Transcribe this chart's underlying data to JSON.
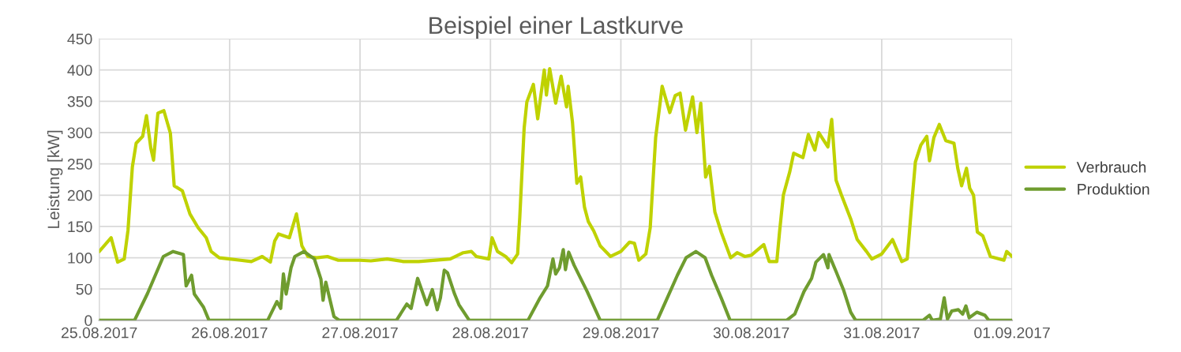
{
  "chart_data": {
    "type": "line",
    "title": "Beispiel einer Lastkurve",
    "ylabel": "Leistung [kW]",
    "xlim": [
      "2017-08-25",
      "2017-09-01"
    ],
    "xticks": [
      {
        "value": "2017-08-25",
        "label": "25.08.2017"
      },
      {
        "value": "2017-08-26",
        "label": "26.08.2017"
      },
      {
        "value": "2017-08-27",
        "label": "27.08.2017"
      },
      {
        "value": "2017-08-28",
        "label": "28.08.2017"
      },
      {
        "value": "2017-08-29",
        "label": "29.08.2017"
      },
      {
        "value": "2017-08-30",
        "label": "30.08.2017"
      },
      {
        "value": "2017-08-31",
        "label": "31.08.2017"
      },
      {
        "value": "2017-09-01",
        "label": "01.09.2017"
      }
    ],
    "ylim": [
      0,
      450
    ],
    "yticks": [
      0,
      50,
      100,
      150,
      200,
      250,
      300,
      350,
      400,
      450
    ],
    "grid": true,
    "legend": "right",
    "marker": "none",
    "line_style": "solid",
    "series": [
      {
        "name": "Verbrauch",
        "color": "#bfd200",
        "x": [
          "2017-08-25T00:00",
          "2017-08-25T02:12",
          "2017-08-25T03:24",
          "2017-08-25T04:36",
          "2017-08-25T05:18",
          "2017-08-25T06:06",
          "2017-08-25T06:48",
          "2017-08-25T08:00",
          "2017-08-25T08:42",
          "2017-08-25T09:30",
          "2017-08-25T10:00",
          "2017-08-25T10:48",
          "2017-08-25T11:54",
          "2017-08-25T13:06",
          "2017-08-25T13:48",
          "2017-08-25T15:18",
          "2017-08-25T16:42",
          "2017-08-25T18:12",
          "2017-08-25T19:42",
          "2017-08-25T20:36",
          "2017-08-25T22:06",
          "2017-08-26T00:00",
          "2017-08-26T02:00",
          "2017-08-26T04:00",
          "2017-08-26T06:00",
          "2017-08-26T07:30",
          "2017-08-26T08:18",
          "2017-08-26T09:00",
          "2017-08-26T11:00",
          "2017-08-26T12:18",
          "2017-08-26T13:18",
          "2017-08-26T14:24",
          "2017-08-26T16:00",
          "2017-08-26T18:00",
          "2017-08-26T20:00",
          "2017-08-27T00:00",
          "2017-08-27T02:00",
          "2017-08-27T05:00",
          "2017-08-27T08:00",
          "2017-08-27T10:48",
          "2017-08-27T16:36",
          "2017-08-27T19:00",
          "2017-08-27T20:30",
          "2017-08-27T21:24",
          "2017-08-27T23:42",
          "2017-08-28T00:18",
          "2017-08-28T01:18",
          "2017-08-28T02:48",
          "2017-08-28T03:54",
          "2017-08-28T05:00",
          "2017-08-28T05:24",
          "2017-08-28T06:12",
          "2017-08-28T06:42",
          "2017-08-28T07:54",
          "2017-08-28T08:42",
          "2017-08-28T09:54",
          "2017-08-28T10:18",
          "2017-08-28T10:54",
          "2017-08-28T12:00",
          "2017-08-28T13:00",
          "2017-08-28T14:00",
          "2017-08-28T14:18",
          "2017-08-28T15:06",
          "2017-08-28T15:54",
          "2017-08-28T16:36",
          "2017-08-28T17:18",
          "2017-08-28T18:00",
          "2017-08-28T19:00",
          "2017-08-28T20:12",
          "2017-08-28T22:06",
          "2017-08-29T00:00",
          "2017-08-29T01:36",
          "2017-08-29T02:30",
          "2017-08-29T03:18",
          "2017-08-29T04:36",
          "2017-08-29T05:24",
          "2017-08-29T06:24",
          "2017-08-29T07:06",
          "2017-08-29T07:36",
          "2017-08-29T09:00",
          "2017-08-29T10:00",
          "2017-08-29T10:54",
          "2017-08-29T11:54",
          "2017-08-29T13:12",
          "2017-08-29T14:00",
          "2017-08-29T14:42",
          "2017-08-29T15:36",
          "2017-08-29T16:18",
          "2017-08-29T17:18",
          "2017-08-29T18:30",
          "2017-08-29T20:12",
          "2017-08-29T21:24",
          "2017-08-29T22:48",
          "2017-08-30T00:00",
          "2017-08-30T02:18",
          "2017-08-30T03:18",
          "2017-08-30T04:42",
          "2017-08-30T05:12",
          "2017-08-30T05:54",
          "2017-08-30T07:06",
          "2017-08-30T07:48",
          "2017-08-30T09:30",
          "2017-08-30T10:30",
          "2017-08-30T11:42",
          "2017-08-30T12:24",
          "2017-08-30T14:06",
          "2017-08-30T14:48",
          "2017-08-30T15:36",
          "2017-08-30T16:36",
          "2017-08-30T18:18",
          "2017-08-30T19:30",
          "2017-08-30T21:12",
          "2017-08-30T22:12",
          "2017-08-31T00:00",
          "2017-08-31T02:00",
          "2017-08-31T03:42",
          "2017-08-31T04:42",
          "2017-08-31T05:30",
          "2017-08-31T06:12",
          "2017-08-31T07:12",
          "2017-08-31T08:18",
          "2017-08-31T08:48",
          "2017-08-31T09:36",
          "2017-08-31T10:36",
          "2017-08-31T11:48",
          "2017-08-31T13:18",
          "2017-08-31T14:00",
          "2017-08-31T14:42",
          "2017-08-31T15:36",
          "2017-08-31T16:12",
          "2017-08-31T16:54",
          "2017-08-31T17:36",
          "2017-08-31T18:36",
          "2017-08-31T20:00",
          "2017-08-31T22:30",
          "2017-08-31T23:00",
          "2017-09-01T00:00"
        ],
        "values": [
          110,
          132,
          93,
          98,
          144,
          245,
          283,
          294,
          327,
          275,
          256,
          331,
          335,
          299,
          215,
          207,
          170,
          148,
          132,
          110,
          100,
          98,
          96,
          94,
          102,
          93,
          127,
          138,
          132,
          170,
          119,
          102,
          100,
          102,
          96,
          96,
          95,
          98,
          94,
          94,
          98,
          108,
          110,
          102,
          98,
          132,
          110,
          102,
          92,
          106,
          165,
          307,
          349,
          377,
          322,
          400,
          360,
          402,
          347,
          390,
          341,
          374,
          316,
          219,
          229,
          181,
          158,
          143,
          119,
          102,
          110,
          125,
          123,
          96,
          106,
          148,
          292,
          339,
          374,
          332,
          359,
          363,
          304,
          357,
          300,
          347,
          229,
          246,
          173,
          140,
          100,
          108,
          102,
          104,
          121,
          94,
          94,
          141,
          200,
          238,
          267,
          260,
          297,
          272,
          300,
          277,
          321,
          224,
          200,
          162,
          129,
          110,
          98,
          106,
          129,
          94,
          98,
          183,
          253,
          280,
          294,
          255,
          292,
          313,
          287,
          283,
          243,
          215,
          243,
          211,
          200,
          141,
          135,
          102,
          96,
          110,
          102
        ]
      },
      {
        "name": "Produktion",
        "color": "#6f9c2f",
        "x": [
          "2017-08-25T00:00",
          "2017-08-25T06:30",
          "2017-08-25T08:54",
          "2017-08-25T11:48",
          "2017-08-25T13:36",
          "2017-08-25T15:30",
          "2017-08-25T16:00",
          "2017-08-25T17:00",
          "2017-08-25T17:30",
          "2017-08-25T19:12",
          "2017-08-25T20:12",
          "2017-08-26T07:00",
          "2017-08-26T08:42",
          "2017-08-26T09:24",
          "2017-08-26T09:54",
          "2017-08-26T10:24",
          "2017-08-26T11:18",
          "2017-08-26T12:00",
          "2017-08-26T13:42",
          "2017-08-26T15:36",
          "2017-08-26T16:48",
          "2017-08-26T17:12",
          "2017-08-26T17:42",
          "2017-08-26T19:12",
          "2017-08-26T20:12",
          "2017-08-27T06:42",
          "2017-08-27T08:36",
          "2017-08-27T09:24",
          "2017-08-27T10:36",
          "2017-08-27T12:18",
          "2017-08-27T13:18",
          "2017-08-27T14:12",
          "2017-08-27T14:48",
          "2017-08-27T15:30",
          "2017-08-27T16:06",
          "2017-08-27T17:24",
          "2017-08-27T18:12",
          "2017-08-27T20:06",
          "2017-08-28T06:54",
          "2017-08-28T09:00",
          "2017-08-28T10:30",
          "2017-08-28T11:30",
          "2017-08-28T12:00",
          "2017-08-28T12:42",
          "2017-08-28T13:24",
          "2017-08-28T13:48",
          "2017-08-28T14:24",
          "2017-08-28T15:24",
          "2017-08-28T17:48",
          "2017-08-28T20:12",
          "2017-08-29T06:42",
          "2017-08-29T08:30",
          "2017-08-29T10:24",
          "2017-08-29T12:00",
          "2017-08-29T13:48",
          "2017-08-29T15:30",
          "2017-08-29T16:42",
          "2017-08-29T18:30",
          "2017-08-29T20:06",
          "2017-08-30T06:30",
          "2017-08-30T08:00",
          "2017-08-30T09:42",
          "2017-08-30T11:06",
          "2017-08-30T11:54",
          "2017-08-30T13:18",
          "2017-08-30T14:06",
          "2017-08-30T14:18",
          "2017-08-30T15:36",
          "2017-08-30T17:00",
          "2017-08-30T18:18",
          "2017-08-30T19:12",
          "2017-08-31T07:36",
          "2017-08-31T08:48",
          "2017-08-31T09:18",
          "2017-08-31T10:48",
          "2017-08-31T11:30",
          "2017-08-31T12:06",
          "2017-08-31T12:54",
          "2017-08-31T14:06",
          "2017-08-31T14:54",
          "2017-08-31T15:30",
          "2017-08-31T16:06",
          "2017-08-31T17:30",
          "2017-08-31T19:00",
          "2017-08-31T19:42",
          "2017-09-01T00:00"
        ],
        "values": [
          0,
          0,
          43,
          102,
          110,
          105,
          55,
          72,
          42,
          21,
          0,
          0,
          30,
          19,
          74,
          42,
          84,
          102,
          110,
          98,
          66,
          32,
          61,
          6,
          0,
          0,
          26,
          19,
          67,
          25,
          49,
          17,
          36,
          80,
          76,
          42,
          25,
          0,
          0,
          34,
          55,
          98,
          74,
          84,
          113,
          81,
          109,
          88,
          46,
          0,
          0,
          35,
          72,
          100,
          110,
          100,
          72,
          35,
          0,
          0,
          10,
          46,
          67,
          93,
          105,
          84,
          105,
          78,
          48,
          13,
          0,
          0,
          8,
          0,
          2,
          36,
          2,
          15,
          17,
          10,
          23,
          4,
          13,
          8,
          0,
          0
        ]
      }
    ]
  }
}
